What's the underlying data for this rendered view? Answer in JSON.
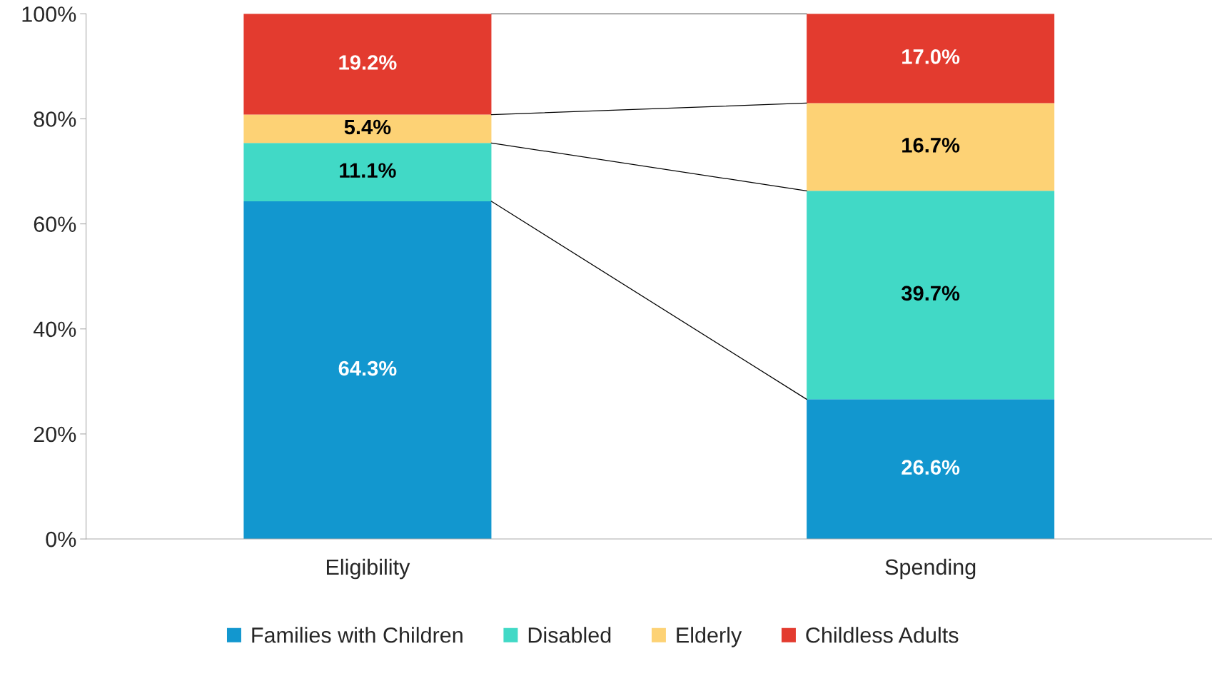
{
  "chart_data": {
    "type": "bar",
    "stacked": true,
    "categories": [
      "Eligibility",
      "Spending"
    ],
    "series": [
      {
        "name": "Families with Children",
        "color": "#1297cf",
        "values": [
          64.3,
          26.6
        ],
        "value_labels": [
          "64.3%",
          "26.6%"
        ]
      },
      {
        "name": "Disabled",
        "color": "#41d9c6",
        "values": [
          11.1,
          39.7
        ],
        "value_labels": [
          "11.1%",
          "39.7%"
        ]
      },
      {
        "name": "Elderly",
        "color": "#fdd275",
        "values": [
          5.4,
          16.7
        ],
        "value_labels": [
          "5.4%",
          "16.7%"
        ]
      },
      {
        "name": "Childless Adults",
        "color": "#e33b2f",
        "values": [
          19.2,
          17.0
        ],
        "value_labels": [
          "19.2%",
          "17.0%"
        ]
      }
    ],
    "ylim": [
      0,
      100
    ],
    "yticks": [
      {
        "value": 0,
        "label": "0%"
      },
      {
        "value": 20,
        "label": "20%"
      },
      {
        "value": 40,
        "label": "40%"
      },
      {
        "value": 60,
        "label": "60%"
      },
      {
        "value": 80,
        "label": "80%"
      },
      {
        "value": 100,
        "label": "100%"
      }
    ],
    "grid": false,
    "legend": "bottom"
  }
}
